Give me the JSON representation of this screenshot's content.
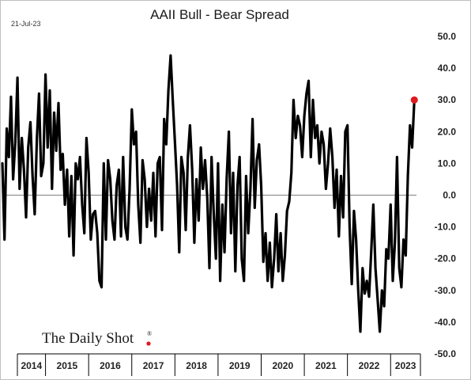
{
  "header": {
    "date": "21-Jul-23",
    "title": "AAII Bull - Bear Spread"
  },
  "branding": {
    "logo_text": "The Daily Shot",
    "logo_mark": "®",
    "logo_dot_color": "#e0191e"
  },
  "colors": {
    "line": "#000000",
    "last_point": "#e0191e",
    "zero_line": "#808080",
    "axis": "#000000"
  },
  "chart_data": {
    "type": "line",
    "title": "AAII Bull - Bear Spread",
    "xlabel": "",
    "ylabel": "",
    "ylim": [
      -50,
      50
    ],
    "yticks": [
      "50.0",
      "40.0",
      "30.0",
      "20.0",
      "10.0",
      "0.0",
      "-10.0",
      "-20.0",
      "-30.0",
      "-40.0",
      "-50.0"
    ],
    "x_categories": [
      "2014",
      "2015",
      "2016",
      "2017",
      "2018",
      "2019",
      "2020",
      "2021",
      "2022",
      "2023"
    ],
    "x_range": [
      2014.0,
      2023.6
    ],
    "reference_line": 0,
    "last_point": {
      "x": 2023.55,
      "y": 30,
      "marker_color": "#e0191e"
    },
    "series": [
      {
        "points": [
          [
            2014.0,
            10
          ],
          [
            2014.05,
            -14
          ],
          [
            2014.1,
            21
          ],
          [
            2014.15,
            12
          ],
          [
            2014.2,
            31
          ],
          [
            2014.25,
            5
          ],
          [
            2014.3,
            17
          ],
          [
            2014.35,
            37
          ],
          [
            2014.4,
            2
          ],
          [
            2014.45,
            18
          ],
          [
            2014.5,
            8
          ],
          [
            2014.55,
            -7
          ],
          [
            2014.6,
            15
          ],
          [
            2014.65,
            23
          ],
          [
            2014.7,
            6
          ],
          [
            2014.75,
            -6
          ],
          [
            2014.8,
            18
          ],
          [
            2014.85,
            32
          ],
          [
            2014.9,
            6
          ],
          [
            2014.95,
            10
          ],
          [
            2015.0,
            38
          ],
          [
            2015.05,
            15
          ],
          [
            2015.1,
            33
          ],
          [
            2015.15,
            2
          ],
          [
            2015.2,
            26
          ],
          [
            2015.25,
            14
          ],
          [
            2015.3,
            29
          ],
          [
            2015.35,
            8
          ],
          [
            2015.4,
            13
          ],
          [
            2015.45,
            -3
          ],
          [
            2015.5,
            8
          ],
          [
            2015.55,
            -13
          ],
          [
            2015.6,
            6
          ],
          [
            2015.65,
            -19
          ],
          [
            2015.7,
            10
          ],
          [
            2015.75,
            5
          ],
          [
            2015.8,
            12
          ],
          [
            2015.85,
            -3
          ],
          [
            2015.9,
            -12
          ],
          [
            2015.95,
            18
          ],
          [
            2016.0,
            7
          ],
          [
            2016.05,
            -14
          ],
          [
            2016.1,
            -6
          ],
          [
            2016.15,
            -5
          ],
          [
            2016.2,
            -12
          ],
          [
            2016.25,
            -27
          ],
          [
            2016.3,
            -29
          ],
          [
            2016.35,
            10
          ],
          [
            2016.4,
            -14
          ],
          [
            2016.45,
            11
          ],
          [
            2016.5,
            5
          ],
          [
            2016.55,
            -8
          ],
          [
            2016.6,
            -14
          ],
          [
            2016.65,
            3
          ],
          [
            2016.7,
            8
          ],
          [
            2016.75,
            -13
          ],
          [
            2016.8,
            12
          ],
          [
            2016.85,
            -10
          ],
          [
            2016.9,
            -14
          ],
          [
            2016.95,
            2
          ],
          [
            2017.0,
            27
          ],
          [
            2017.05,
            16
          ],
          [
            2017.1,
            20
          ],
          [
            2017.15,
            -3
          ],
          [
            2017.2,
            -15
          ],
          [
            2017.25,
            11
          ],
          [
            2017.3,
            5
          ],
          [
            2017.35,
            -10
          ],
          [
            2017.4,
            2
          ],
          [
            2017.45,
            -8
          ],
          [
            2017.5,
            7
          ],
          [
            2017.55,
            -13
          ],
          [
            2017.6,
            10
          ],
          [
            2017.65,
            12
          ],
          [
            2017.7,
            -11
          ],
          [
            2017.75,
            24
          ],
          [
            2017.8,
            16
          ],
          [
            2017.85,
            33
          ],
          [
            2017.9,
            44
          ],
          [
            2017.95,
            30
          ],
          [
            2018.0,
            17
          ],
          [
            2018.05,
            3
          ],
          [
            2018.1,
            -18
          ],
          [
            2018.15,
            12
          ],
          [
            2018.2,
            7
          ],
          [
            2018.25,
            -11
          ],
          [
            2018.3,
            12
          ],
          [
            2018.35,
            22
          ],
          [
            2018.4,
            8
          ],
          [
            2018.45,
            -15
          ],
          [
            2018.5,
            5
          ],
          [
            2018.55,
            -8
          ],
          [
            2018.6,
            15
          ],
          [
            2018.65,
            2
          ],
          [
            2018.7,
            11
          ],
          [
            2018.75,
            -1
          ],
          [
            2018.8,
            -23
          ],
          [
            2018.85,
            12
          ],
          [
            2018.9,
            -6
          ],
          [
            2018.95,
            -20
          ],
          [
            2019.0,
            10
          ],
          [
            2019.05,
            -27
          ],
          [
            2019.1,
            -3
          ],
          [
            2019.15,
            -18
          ],
          [
            2019.2,
            5
          ],
          [
            2019.25,
            20
          ],
          [
            2019.3,
            -12
          ],
          [
            2019.35,
            7
          ],
          [
            2019.4,
            -24
          ],
          [
            2019.45,
            3
          ],
          [
            2019.5,
            12
          ],
          [
            2019.55,
            -20
          ],
          [
            2019.6,
            -27
          ],
          [
            2019.65,
            6
          ],
          [
            2019.7,
            -12
          ],
          [
            2019.75,
            2
          ],
          [
            2019.8,
            24
          ],
          [
            2019.85,
            -4
          ],
          [
            2019.9,
            11
          ],
          [
            2019.95,
            16
          ],
          [
            2020.0,
            3
          ],
          [
            2020.05,
            -21
          ],
          [
            2020.1,
            -12
          ],
          [
            2020.15,
            -27
          ],
          [
            2020.2,
            -15
          ],
          [
            2020.25,
            -29
          ],
          [
            2020.3,
            -20
          ],
          [
            2020.35,
            -6
          ],
          [
            2020.4,
            -24
          ],
          [
            2020.45,
            -12
          ],
          [
            2020.5,
            -27
          ],
          [
            2020.55,
            -19
          ],
          [
            2020.6,
            -5
          ],
          [
            2020.65,
            -2
          ],
          [
            2020.7,
            7
          ],
          [
            2020.75,
            30
          ],
          [
            2020.8,
            18
          ],
          [
            2020.85,
            25
          ],
          [
            2020.9,
            22
          ],
          [
            2020.95,
            12
          ],
          [
            2021.0,
            25
          ],
          [
            2021.05,
            32
          ],
          [
            2021.1,
            36
          ],
          [
            2021.15,
            12
          ],
          [
            2021.2,
            30
          ],
          [
            2021.25,
            18
          ],
          [
            2021.3,
            22
          ],
          [
            2021.35,
            10
          ],
          [
            2021.4,
            20
          ],
          [
            2021.45,
            16
          ],
          [
            2021.5,
            2
          ],
          [
            2021.55,
            10
          ],
          [
            2021.6,
            21
          ],
          [
            2021.65,
            12
          ],
          [
            2021.7,
            -4
          ],
          [
            2021.75,
            8
          ],
          [
            2021.8,
            -13
          ],
          [
            2021.85,
            6
          ],
          [
            2021.9,
            -7
          ],
          [
            2021.95,
            20
          ],
          [
            2022.0,
            22
          ],
          [
            2022.05,
            -10
          ],
          [
            2022.1,
            -28
          ],
          [
            2022.15,
            -5
          ],
          [
            2022.2,
            -14
          ],
          [
            2022.25,
            -30
          ],
          [
            2022.3,
            -43
          ],
          [
            2022.35,
            -23
          ],
          [
            2022.4,
            -31
          ],
          [
            2022.45,
            -27
          ],
          [
            2022.5,
            -32
          ],
          [
            2022.55,
            -18
          ],
          [
            2022.6,
            -3
          ],
          [
            2022.65,
            -23
          ],
          [
            2022.7,
            -33
          ],
          [
            2022.75,
            -43
          ],
          [
            2022.8,
            -30
          ],
          [
            2022.85,
            -35
          ],
          [
            2022.9,
            -17
          ],
          [
            2022.95,
            -20
          ],
          [
            2023.0,
            -3
          ],
          [
            2023.05,
            -27
          ],
          [
            2023.1,
            -15
          ],
          [
            2023.15,
            12
          ],
          [
            2023.2,
            -23
          ],
          [
            2023.25,
            -29
          ],
          [
            2023.3,
            -14
          ],
          [
            2023.35,
            -19
          ],
          [
            2023.4,
            6
          ],
          [
            2023.45,
            22
          ],
          [
            2023.5,
            15
          ],
          [
            2023.55,
            30
          ]
        ]
      }
    ]
  }
}
